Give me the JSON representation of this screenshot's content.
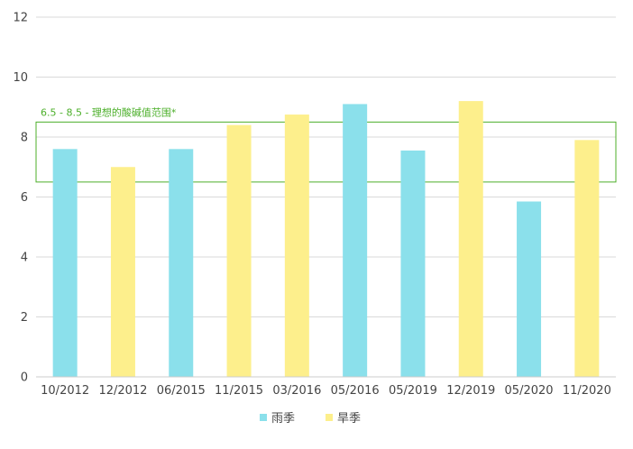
{
  "chart_data": {
    "type": "bar",
    "categories": [
      "10/2012",
      "12/2012",
      "06/2015",
      "11/2015",
      "03/2016",
      "05/2016",
      "05/2019",
      "12/2019",
      "05/2020",
      "11/2020"
    ],
    "values": [
      7.6,
      7.0,
      7.6,
      8.4,
      8.75,
      9.1,
      7.55,
      9.2,
      5.85,
      7.9
    ],
    "season_of_bar": [
      "雨季",
      "旱季",
      "雨季",
      "旱季",
      "旱季",
      "雨季",
      "雨季",
      "旱季",
      "雨季",
      "旱季"
    ],
    "series": [
      {
        "name": "雨季",
        "color": "#8be0eb"
      },
      {
        "name": "旱季",
        "color": "#fdef8c"
      }
    ],
    "ylim": [
      0,
      12
    ],
    "yticks": [
      "0",
      "2",
      "4",
      "6",
      "8",
      "10",
      "12"
    ],
    "grid": true,
    "legend_position": "bottom",
    "annotation_band": {
      "label": "6.5 - 8.5 - 理想的酸碱值范围*",
      "range": [
        6.5,
        8.5
      ],
      "color": "#4caf2a"
    }
  }
}
